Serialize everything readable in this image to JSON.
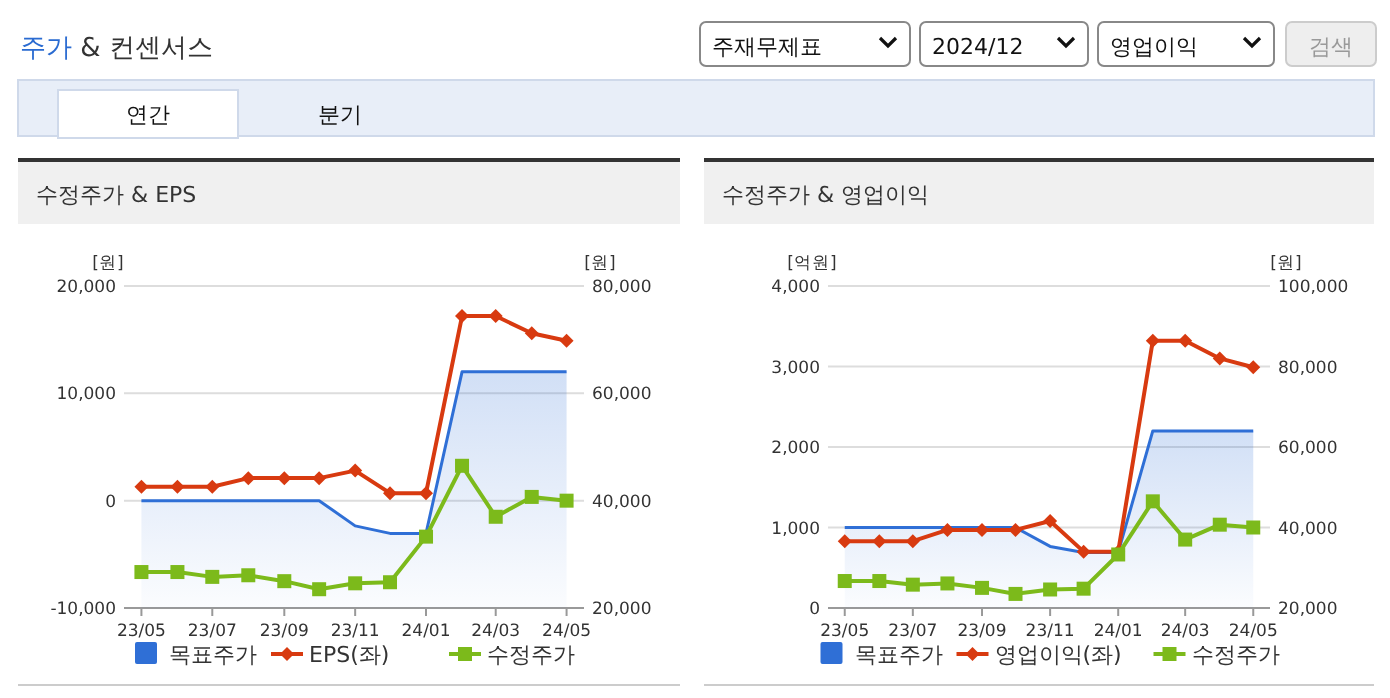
{
  "chart_data": [
    {
      "type": "other",
      "title": "주가 & 컨센서스",
      "annotations": [
        "주재무제표",
        "2024/12",
        "영업이익",
        "검색",
        "연간",
        "분기"
      ]
    },
    {
      "type": "line",
      "title": "수정주가 & EPS",
      "ylabel": "[원]",
      "y2label": "[원]",
      "grid": "y",
      "legend": "bottom",
      "x": [
        "2023-05",
        "2023-06",
        "2023-07",
        "2023-08",
        "2023-09",
        "2023-10",
        "2023-11",
        "2023-12",
        "2024-01",
        "2024-02",
        "2024-03",
        "2024-04",
        "2024-05"
      ],
      "xlim": [
        "2023-04-16",
        "2024-05-16"
      ],
      "xticks": [
        {
          "value": "2023-05",
          "label": "23/05"
        },
        {
          "value": "2023-07",
          "label": "23/07"
        },
        {
          "value": "2023-09",
          "label": "23/09"
        },
        {
          "value": "2023-11",
          "label": "23/11"
        },
        {
          "value": "2024-01",
          "label": "24/01"
        },
        {
          "value": "2024-03",
          "label": "24/03"
        },
        {
          "value": "2024-05",
          "label": "24/05"
        }
      ],
      "ylim": [
        -10000,
        20000
      ],
      "yticks": [
        {
          "value": -10000,
          "label": "-10,000"
        },
        {
          "value": 0,
          "label": "0"
        },
        {
          "value": 10000,
          "label": "10,000"
        },
        {
          "value": 20000,
          "label": "20,000"
        }
      ],
      "y2lim": [
        20000,
        80000
      ],
      "y2ticks": [
        {
          "value": 20000,
          "label": "20,000"
        },
        {
          "value": 40000,
          "label": "40,000"
        },
        {
          "value": 60000,
          "label": "60,000"
        },
        {
          "value": 80000,
          "label": "80,000"
        }
      ],
      "series": [
        {
          "name": "목표주가",
          "type": "area",
          "axis": "y2",
          "color": "#2f6fd6",
          "marker": "none",
          "values": [
            40000,
            40000,
            40000,
            40000,
            40000,
            40000,
            35300,
            33900,
            33900,
            64000,
            64000,
            64000,
            64000
          ]
        },
        {
          "name": "EPS(좌)",
          "type": "line",
          "color": "#d83a10",
          "marker": "diamond",
          "values": [
            1300,
            1300,
            1300,
            2100,
            2100,
            2100,
            2800,
            700,
            700,
            17200,
            17200,
            15600,
            14900
          ]
        },
        {
          "name": "수정주가",
          "type": "line",
          "axis": "y2",
          "color": "#7cba1b",
          "marker": "square",
          "values": [
            26700,
            26700,
            25800,
            26100,
            25000,
            23500,
            24600,
            24800,
            33300,
            46500,
            37000,
            40700,
            40000
          ]
        }
      ]
    },
    {
      "type": "line",
      "title": "수정주가 & 영업이익",
      "ylabel": "[억원]",
      "y2label": "[원]",
      "grid": "y",
      "legend": "bottom",
      "x": [
        "2023-05",
        "2023-06",
        "2023-07",
        "2023-08",
        "2023-09",
        "2023-10",
        "2023-11",
        "2023-12",
        "2024-01",
        "2024-02",
        "2024-03",
        "2024-04",
        "2024-05"
      ],
      "xlim": [
        "2023-04-16",
        "2024-05-16"
      ],
      "xticks": [
        {
          "value": "2023-05",
          "label": "23/05"
        },
        {
          "value": "2023-07",
          "label": "23/07"
        },
        {
          "value": "2023-09",
          "label": "23/09"
        },
        {
          "value": "2023-11",
          "label": "23/11"
        },
        {
          "value": "2024-01",
          "label": "24/01"
        },
        {
          "value": "2024-03",
          "label": "24/03"
        },
        {
          "value": "2024-05",
          "label": "24/05"
        }
      ],
      "ylim": [
        0,
        4000
      ],
      "yticks": [
        {
          "value": 0,
          "label": "0"
        },
        {
          "value": 1000,
          "label": "1,000"
        },
        {
          "value": 2000,
          "label": "2,000"
        },
        {
          "value": 3000,
          "label": "3,000"
        },
        {
          "value": 4000,
          "label": "4,000"
        }
      ],
      "y2lim": [
        20000,
        100000
      ],
      "y2ticks": [
        {
          "value": 20000,
          "label": "20,000"
        },
        {
          "value": 40000,
          "label": "40,000"
        },
        {
          "value": 60000,
          "label": "60,000"
        },
        {
          "value": 80000,
          "label": "80,000"
        },
        {
          "value": 100000,
          "label": "100,000"
        }
      ],
      "series": [
        {
          "name": "목표주가",
          "type": "area",
          "axis": "y2",
          "color": "#2f6fd6",
          "marker": "none",
          "values": [
            40000,
            40000,
            40000,
            40000,
            40000,
            40000,
            35300,
            33800,
            33800,
            64000,
            64000,
            64000,
            64000
          ]
        },
        {
          "name": "영업이익(좌)",
          "type": "line",
          "color": "#d83a10",
          "marker": "diamond",
          "values": [
            830,
            830,
            830,
            970,
            970,
            970,
            1080,
            700,
            700,
            3320,
            3320,
            3100,
            2990
          ]
        },
        {
          "name": "수정주가",
          "type": "line",
          "axis": "y2",
          "color": "#7cba1b",
          "marker": "square",
          "values": [
            26700,
            26700,
            25800,
            26100,
            25000,
            23500,
            24600,
            24800,
            33300,
            46500,
            37000,
            40700,
            40000
          ]
        }
      ]
    }
  ]
}
